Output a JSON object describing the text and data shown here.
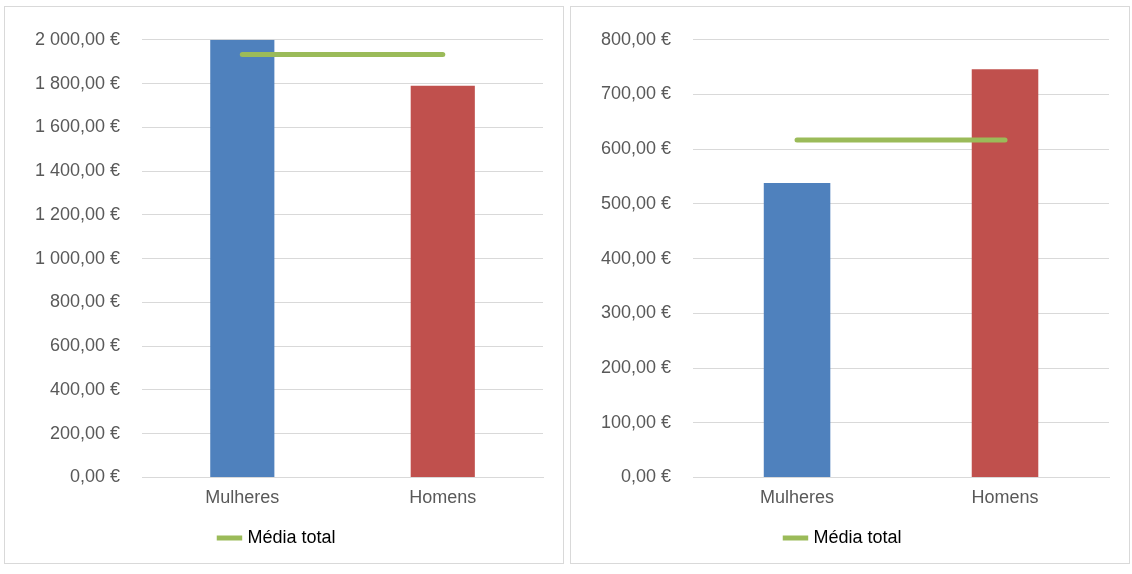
{
  "chart_data": [
    {
      "type": "bar",
      "categories": [
        "Mulheres",
        "Homens"
      ],
      "series": [
        {
          "colors": [
            "#4f81bd",
            "#c0504d"
          ],
          "values": [
            2000,
            1790
          ]
        },
        {
          "type": "line",
          "name": "Média total",
          "color": "#9bbb59",
          "values": [
            1933,
            1933
          ]
        }
      ],
      "ylim": [
        0,
        2000
      ],
      "yticks": [
        {
          "value": 0,
          "label": "0,00 €"
        },
        {
          "value": 200,
          "label": "200,00 €"
        },
        {
          "value": 400,
          "label": "400,00 €"
        },
        {
          "value": 600,
          "label": "600,00 €"
        },
        {
          "value": 800,
          "label": "800,00 €"
        },
        {
          "value": 1000,
          "label": "1 000,00 €"
        },
        {
          "value": 1200,
          "label": "1 200,00 €"
        },
        {
          "value": 1400,
          "label": "1 400,00 €"
        },
        {
          "value": 1600,
          "label": "1 600,00 €"
        },
        {
          "value": 1800,
          "label": "1 800,00 €"
        },
        {
          "value": 2000,
          "label": "2 000,00 €"
        }
      ],
      "grid": "y",
      "legend": "bottom",
      "marker": "none"
    },
    {
      "type": "bar",
      "categories": [
        "Mulheres",
        "Homens"
      ],
      "series": [
        {
          "colors": [
            "#4f81bd",
            "#c0504d"
          ],
          "values": [
            538,
            746
          ]
        },
        {
          "type": "line",
          "name": "Média total",
          "color": "#9bbb59",
          "values": [
            617,
            617
          ]
        }
      ],
      "ylim": [
        0,
        800
      ],
      "yticks": [
        {
          "value": 0,
          "label": "0,00 €"
        },
        {
          "value": 100,
          "label": "100,00 €"
        },
        {
          "value": 200,
          "label": "200,00 €"
        },
        {
          "value": 300,
          "label": "300,00 €"
        },
        {
          "value": 400,
          "label": "400,00 €"
        },
        {
          "value": 500,
          "label": "500,00 €"
        },
        {
          "value": 600,
          "label": "600,00 €"
        },
        {
          "value": 700,
          "label": "700,00 €"
        },
        {
          "value": 800,
          "label": "800,00 €"
        }
      ],
      "grid": "y",
      "legend": "bottom",
      "marker": "none"
    }
  ]
}
